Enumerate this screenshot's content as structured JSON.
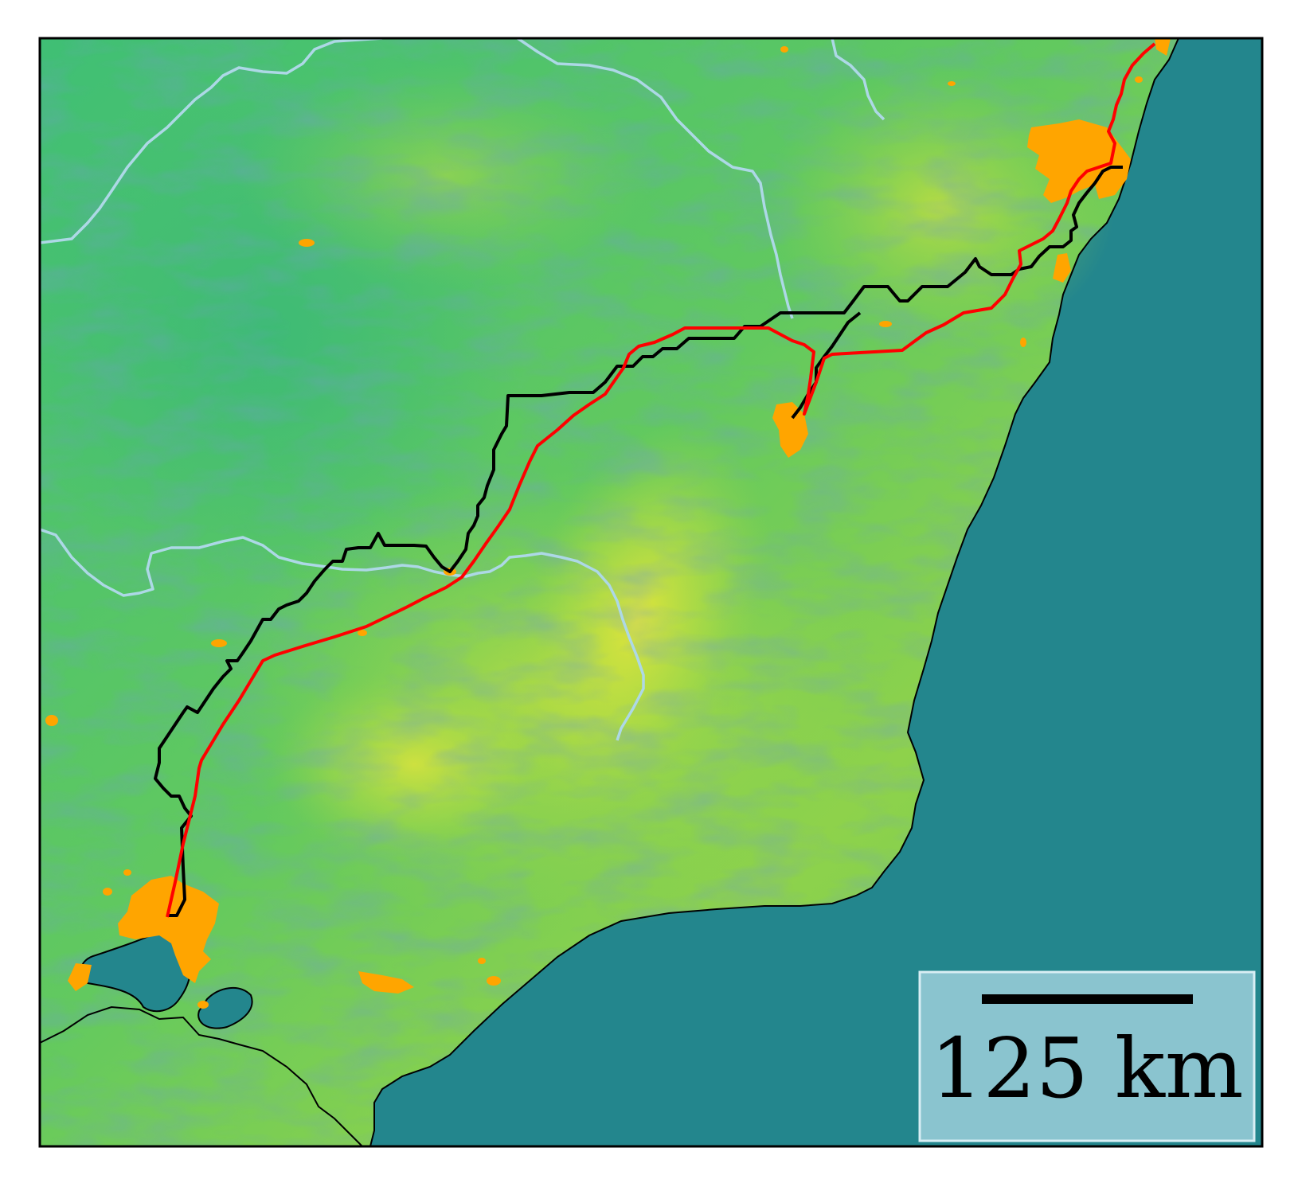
{
  "map": {
    "colors": {
      "sea": "#23868d",
      "land_low": "#3dbd76",
      "land_high": "#d5e33a",
      "urban": "#ffa500",
      "river": "#add8e6",
      "route_black": "#000000",
      "route_red": "#ff0000",
      "frame": "#000000"
    },
    "layers": [
      "hillshade-terrain",
      "coastline",
      "rivers",
      "urban-areas",
      "black-route",
      "red-route"
    ],
    "scale_bar": {
      "label": "125 km",
      "box_color": "#add8e6"
    }
  }
}
